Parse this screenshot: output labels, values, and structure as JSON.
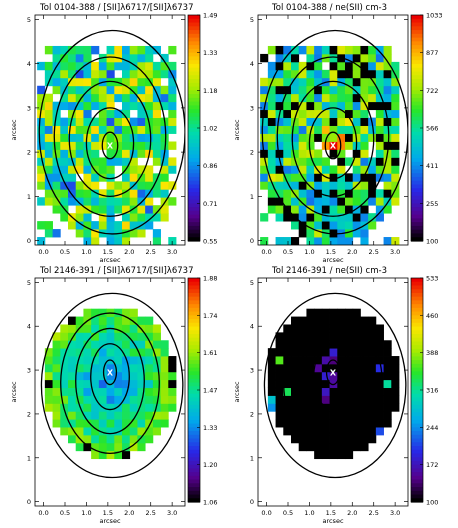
{
  "chart_data": [
    {
      "type": "heatmap",
      "title": "Tol 0104-388 / [SII]λ6717/[SII]λ6737",
      "xlabel": "arcsec",
      "ylabel": "arcsec",
      "xlim": [
        -0.2,
        3.3
      ],
      "ylim": [
        -0.1,
        5.1
      ],
      "xticks": [
        "0.0",
        "0.5",
        "1.0",
        "1.5",
        "2.0",
        "2.5",
        "3.0"
      ],
      "yticks": [
        "0",
        "1",
        "2",
        "3",
        "4",
        "5"
      ],
      "colorbar": {
        "min": 0.55,
        "max": 1.49,
        "ticks": [
          "1.49",
          "1.33",
          "1.18",
          "1.02",
          "0.86",
          "0.71",
          "0.55"
        ]
      },
      "marker": {
        "label": "X",
        "x": 1.55,
        "y": 2.15
      },
      "contours": [
        {
          "cx": 1.55,
          "cy": 2.15,
          "rx": 0.18,
          "ry": 0.3
        },
        {
          "cx": 1.55,
          "cy": 2.2,
          "rx": 0.55,
          "ry": 0.8
        },
        {
          "cx": 1.55,
          "cy": 2.3,
          "rx": 0.95,
          "ry": 1.3
        },
        {
          "cx": 1.55,
          "cy": 2.35,
          "rx": 1.3,
          "ry": 1.8
        },
        {
          "cx": 1.6,
          "cy": 2.45,
          "rx": 1.7,
          "ry": 2.3
        }
      ],
      "pixel_map": {
        "nx": 18,
        "ny": 25,
        "cell": 0.18,
        "x0": -0.15,
        "y0": -0.1,
        "fill": 0.78,
        "black": 0.0,
        "style": "mid-noisy",
        "seed": 11
      }
    },
    {
      "type": "heatmap",
      "title": "Tol 0104-388 / ne(SII) cm-3",
      "xlabel": "arcsec",
      "ylabel": "arcsec",
      "xlim": [
        -0.2,
        3.3
      ],
      "ylim": [
        -0.1,
        5.1
      ],
      "xticks": [
        "0.0",
        "0.5",
        "1.0",
        "1.5",
        "2.0",
        "2.5",
        "3.0"
      ],
      "yticks": [
        "0",
        "1",
        "2",
        "3",
        "4",
        "5"
      ],
      "colorbar": {
        "min": 100,
        "max": 1033,
        "ticks": [
          "1033",
          "877",
          "722",
          "566",
          "411",
          "255",
          "100"
        ]
      },
      "marker": {
        "label": "X",
        "x": 1.55,
        "y": 2.15
      },
      "contours": [
        {
          "cx": 1.55,
          "cy": 2.15,
          "rx": 0.18,
          "ry": 0.3
        },
        {
          "cx": 1.55,
          "cy": 2.2,
          "rx": 0.55,
          "ry": 0.8
        },
        {
          "cx": 1.55,
          "cy": 2.3,
          "rx": 0.95,
          "ry": 1.3
        },
        {
          "cx": 1.55,
          "cy": 2.35,
          "rx": 1.3,
          "ry": 1.8
        },
        {
          "cx": 1.6,
          "cy": 2.45,
          "rx": 1.7,
          "ry": 2.3
        }
      ],
      "pixel_map": {
        "nx": 18,
        "ny": 25,
        "cell": 0.18,
        "x0": -0.15,
        "y0": -0.1,
        "fill": 0.8,
        "black": 0.16,
        "style": "density-peak",
        "seed": 23
      }
    },
    {
      "type": "heatmap",
      "title": "Tol 2146-391 / [SII]λ6717/[SII]λ6737",
      "xlabel": "arcsec",
      "ylabel": "arcsec",
      "xlim": [
        -0.2,
        3.3
      ],
      "ylim": [
        -0.1,
        5.1
      ],
      "xticks": [
        "0.0",
        "0.5",
        "1.0",
        "1.5",
        "2.0",
        "2.5",
        "3.0"
      ],
      "yticks": [
        "0",
        "1",
        "2",
        "3",
        "4",
        "5"
      ],
      "colorbar": {
        "min": 1.06,
        "max": 1.88,
        "ticks": [
          "1.88",
          "1.74",
          "1.61",
          "1.47",
          "1.33",
          "1.20",
          "1.06"
        ]
      },
      "marker": {
        "label": "X",
        "x": 1.55,
        "y": 2.95
      },
      "contours": [
        {
          "cx": 1.55,
          "cy": 2.95,
          "rx": 0.15,
          "ry": 0.28
        },
        {
          "cx": 1.55,
          "cy": 2.85,
          "rx": 0.45,
          "ry": 0.75
        },
        {
          "cx": 1.55,
          "cy": 2.75,
          "rx": 0.8,
          "ry": 1.2
        },
        {
          "cx": 1.55,
          "cy": 2.7,
          "rx": 1.15,
          "ry": 1.6
        },
        {
          "cx": 1.6,
          "cy": 2.65,
          "rx": 1.65,
          "ry": 2.1
        }
      ],
      "pixel_map": {
        "nx": 18,
        "ny": 25,
        "cell": 0.18,
        "x0": -0.15,
        "y0": -0.1,
        "fill": 1.0,
        "black": 0.0,
        "style": "ratio-blue-core",
        "seed": 37,
        "cx": 1.55,
        "cy": 2.75,
        "rx": 1.55,
        "ry": 1.75
      }
    },
    {
      "type": "heatmap",
      "title": "Tol 2146-391 / ne(SII) cm-3",
      "xlabel": "arcsec",
      "ylabel": "arcsec",
      "xlim": [
        -0.2,
        3.3
      ],
      "ylim": [
        -0.1,
        5.1
      ],
      "xticks": [
        "0.0",
        "0.5",
        "1.0",
        "1.5",
        "2.0",
        "2.5",
        "3.0"
      ],
      "yticks": [
        "0",
        "1",
        "2",
        "3",
        "4",
        "5"
      ],
      "colorbar": {
        "min": 100,
        "max": 533,
        "ticks": [
          "533",
          "460",
          "388",
          "316",
          "244",
          "172",
          "100"
        ]
      },
      "marker": {
        "label": "X",
        "x": 1.55,
        "y": 2.95
      },
      "contours": [
        {
          "cx": 1.55,
          "cy": 2.95,
          "rx": 0.15,
          "ry": 0.28
        },
        {
          "cx": 1.55,
          "cy": 2.85,
          "rx": 0.45,
          "ry": 0.75
        },
        {
          "cx": 1.55,
          "cy": 2.75,
          "rx": 0.8,
          "ry": 1.2
        },
        {
          "cx": 1.55,
          "cy": 2.7,
          "rx": 1.15,
          "ry": 1.6
        },
        {
          "cx": 1.6,
          "cy": 2.65,
          "rx": 1.65,
          "ry": 2.1
        }
      ],
      "pixel_map": {
        "nx": 18,
        "ny": 25,
        "cell": 0.18,
        "x0": -0.15,
        "y0": -0.1,
        "fill": 1.0,
        "black": 0.0,
        "style": "mostly-black",
        "seed": 51,
        "cx": 1.55,
        "cy": 2.75,
        "rx": 1.55,
        "ry": 1.75
      }
    }
  ]
}
